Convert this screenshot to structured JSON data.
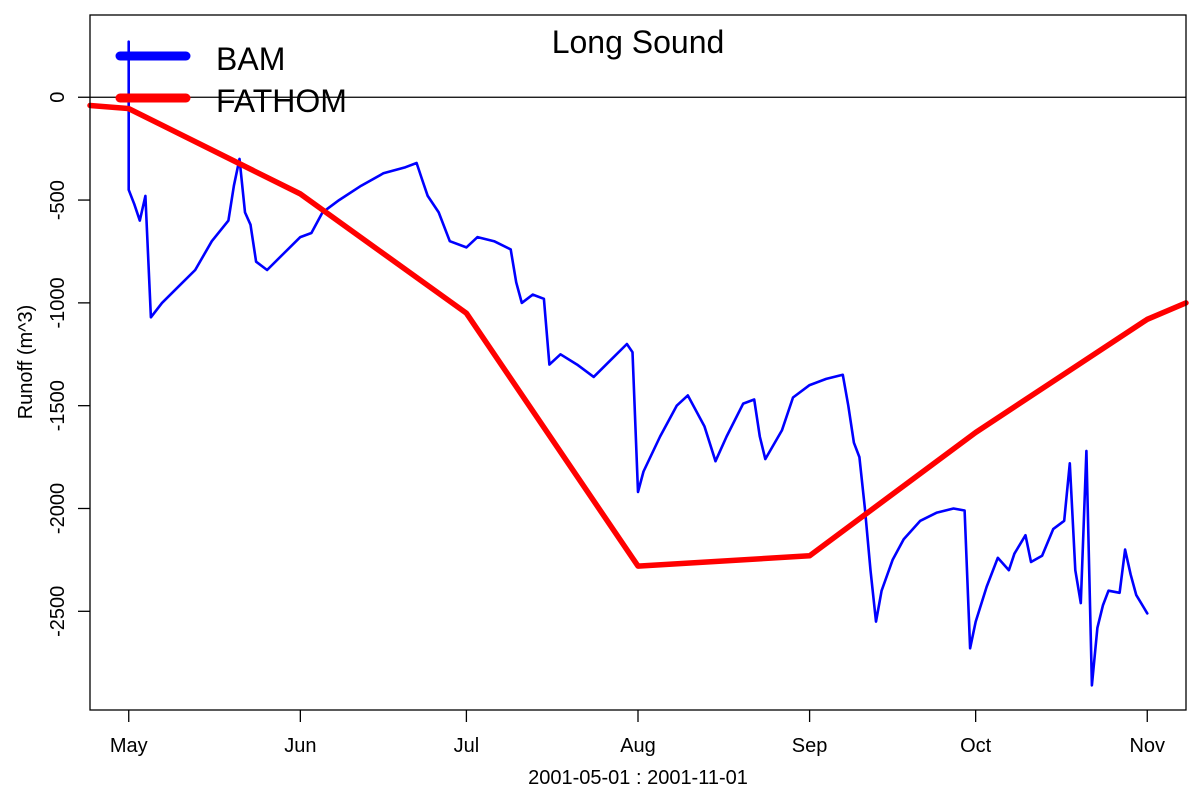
{
  "chart_data": {
    "type": "line",
    "title": "Long Sound",
    "xlabel": "2001-05-01 : 2001-11-01",
    "ylabel": "Runoff (m^3)",
    "xlim": [
      "2001-04-24",
      "2001-11-08"
    ],
    "ylim": [
      -2980,
      400
    ],
    "x_ticks": [
      {
        "date": "2001-05-01",
        "label": "May"
      },
      {
        "date": "2001-06-01",
        "label": "Jun"
      },
      {
        "date": "2001-07-01",
        "label": "Jul"
      },
      {
        "date": "2001-08-01",
        "label": "Aug"
      },
      {
        "date": "2001-09-01",
        "label": "Sep"
      },
      {
        "date": "2001-10-01",
        "label": "Oct"
      },
      {
        "date": "2001-11-01",
        "label": "Nov"
      }
    ],
    "y_ticks": [
      0,
      -500,
      -1000,
      -1500,
      -2000,
      -2500
    ],
    "reference_line": 0,
    "legend": {
      "position": "top-left"
    },
    "series": [
      {
        "name": "BAM",
        "color": "#0000ff",
        "points": [
          [
            "2001-05-01",
            -40
          ],
          [
            "2001-05-01",
            270
          ],
          [
            "2001-05-01",
            -450
          ],
          [
            "2001-05-02",
            -520
          ],
          [
            "2001-05-03",
            -600
          ],
          [
            "2001-05-04",
            -480
          ],
          [
            "2001-05-05",
            -1070
          ],
          [
            "2001-05-07",
            -1000
          ],
          [
            "2001-05-10",
            -920
          ],
          [
            "2001-05-13",
            -840
          ],
          [
            "2001-05-16",
            -700
          ],
          [
            "2001-05-19",
            -600
          ],
          [
            "2001-05-20",
            -430
          ],
          [
            "2001-05-21",
            -300
          ],
          [
            "2001-05-22",
            -560
          ],
          [
            "2001-05-23",
            -620
          ],
          [
            "2001-05-24",
            -800
          ],
          [
            "2001-05-26",
            -840
          ],
          [
            "2001-05-29",
            -760
          ],
          [
            "2001-06-01",
            -680
          ],
          [
            "2001-06-03",
            -660
          ],
          [
            "2001-06-05",
            -560
          ],
          [
            "2001-06-08",
            -500
          ],
          [
            "2001-06-12",
            -430
          ],
          [
            "2001-06-16",
            -370
          ],
          [
            "2001-06-20",
            -340
          ],
          [
            "2001-06-22",
            -320
          ],
          [
            "2001-06-23",
            -400
          ],
          [
            "2001-06-24",
            -480
          ],
          [
            "2001-06-26",
            -560
          ],
          [
            "2001-06-28",
            -700
          ],
          [
            "2001-07-01",
            -730
          ],
          [
            "2001-07-03",
            -680
          ],
          [
            "2001-07-06",
            -700
          ],
          [
            "2001-07-09",
            -740
          ],
          [
            "2001-07-10",
            -900
          ],
          [
            "2001-07-11",
            -1000
          ],
          [
            "2001-07-13",
            -960
          ],
          [
            "2001-07-15",
            -980
          ],
          [
            "2001-07-16",
            -1300
          ],
          [
            "2001-07-18",
            -1250
          ],
          [
            "2001-07-21",
            -1300
          ],
          [
            "2001-07-24",
            -1360
          ],
          [
            "2001-07-27",
            -1280
          ],
          [
            "2001-07-30",
            -1200
          ],
          [
            "2001-07-31",
            -1240
          ],
          [
            "2001-08-01",
            -1920
          ],
          [
            "2001-08-02",
            -1820
          ],
          [
            "2001-08-05",
            -1650
          ],
          [
            "2001-08-08",
            -1500
          ],
          [
            "2001-08-10",
            -1450
          ],
          [
            "2001-08-13",
            -1600
          ],
          [
            "2001-08-15",
            -1770
          ],
          [
            "2001-08-17",
            -1650
          ],
          [
            "2001-08-20",
            -1490
          ],
          [
            "2001-08-22",
            -1470
          ],
          [
            "2001-08-23",
            -1650
          ],
          [
            "2001-08-24",
            -1760
          ],
          [
            "2001-08-27",
            -1620
          ],
          [
            "2001-08-29",
            -1460
          ],
          [
            "2001-09-01",
            -1400
          ],
          [
            "2001-09-04",
            -1370
          ],
          [
            "2001-09-07",
            -1350
          ],
          [
            "2001-09-08",
            -1500
          ],
          [
            "2001-09-09",
            -1680
          ],
          [
            "2001-09-10",
            -1750
          ],
          [
            "2001-09-11",
            -2000
          ],
          [
            "2001-09-12",
            -2300
          ],
          [
            "2001-09-13",
            -2550
          ],
          [
            "2001-09-14",
            -2400
          ],
          [
            "2001-09-16",
            -2250
          ],
          [
            "2001-09-18",
            -2150
          ],
          [
            "2001-09-21",
            -2060
          ],
          [
            "2001-09-24",
            -2020
          ],
          [
            "2001-09-27",
            -2000
          ],
          [
            "2001-09-29",
            -2010
          ],
          [
            "2001-09-30",
            -2680
          ],
          [
            "2001-10-01",
            -2550
          ],
          [
            "2001-10-03",
            -2380
          ],
          [
            "2001-10-05",
            -2240
          ],
          [
            "2001-10-07",
            -2300
          ],
          [
            "2001-10-08",
            -2220
          ],
          [
            "2001-10-10",
            -2130
          ],
          [
            "2001-10-11",
            -2260
          ],
          [
            "2001-10-13",
            -2230
          ],
          [
            "2001-10-15",
            -2100
          ],
          [
            "2001-10-17",
            -2060
          ],
          [
            "2001-10-18",
            -1780
          ],
          [
            "2001-10-19",
            -2300
          ],
          [
            "2001-10-20",
            -2460
          ],
          [
            "2001-10-21",
            -1720
          ],
          [
            "2001-10-22",
            -2860
          ],
          [
            "2001-10-23",
            -2580
          ],
          [
            "2001-10-24",
            -2470
          ],
          [
            "2001-10-25",
            -2400
          ],
          [
            "2001-10-27",
            -2410
          ],
          [
            "2001-10-28",
            -2200
          ],
          [
            "2001-10-29",
            -2320
          ],
          [
            "2001-10-30",
            -2420
          ],
          [
            "2001-11-01",
            -2510
          ]
        ]
      },
      {
        "name": "FATHOM",
        "color": "#ff0000",
        "points": [
          [
            "2001-04-24",
            -40
          ],
          [
            "2001-05-01",
            -55
          ],
          [
            "2001-06-01",
            -470
          ],
          [
            "2001-07-01",
            -1050
          ],
          [
            "2001-08-01",
            -2280
          ],
          [
            "2001-09-01",
            -2230
          ],
          [
            "2001-10-01",
            -1630
          ],
          [
            "2001-11-01",
            -1080
          ],
          [
            "2001-11-08",
            -1000
          ]
        ]
      }
    ]
  }
}
